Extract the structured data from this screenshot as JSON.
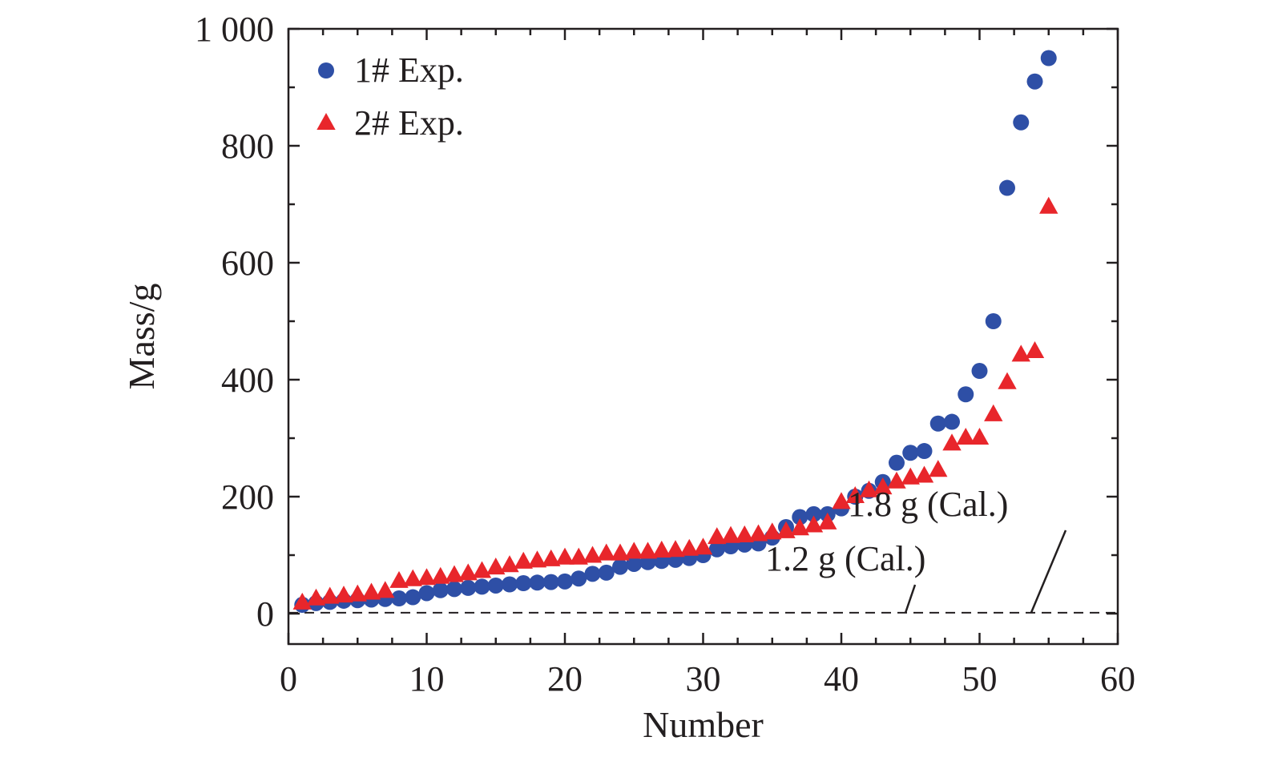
{
  "chart_data": {
    "type": "scatter",
    "xlabel": "Number",
    "ylabel": "Mass/g",
    "xlim": [
      0,
      60
    ],
    "ylim": [
      -50,
      1000
    ],
    "x_ticks": [
      0,
      10,
      20,
      30,
      40,
      50,
      60
    ],
    "x_tick_labels": [
      "0",
      "10",
      "20",
      "30",
      "40",
      "50",
      "60"
    ],
    "y_ticks": [
      0,
      200,
      400,
      600,
      800,
      1000
    ],
    "y_tick_labels": [
      "0",
      "200",
      "400",
      "600",
      "800",
      "1 000"
    ],
    "grid": false,
    "legend_position": "top-left",
    "series": [
      {
        "name": "1# Exp.",
        "marker": "circle",
        "color": "#2e4fa6",
        "x": [
          1,
          2,
          3,
          4,
          5,
          6,
          7,
          8,
          9,
          10,
          11,
          12,
          13,
          14,
          15,
          16,
          17,
          18,
          19,
          20,
          21,
          22,
          23,
          24,
          25,
          26,
          27,
          28,
          29,
          30,
          31,
          32,
          33,
          34,
          35,
          36,
          37,
          38,
          39,
          40,
          41,
          42,
          43,
          44,
          45,
          46,
          47,
          48,
          49,
          50,
          51,
          52,
          53,
          54,
          55
        ],
        "y": [
          15,
          18,
          20,
          22,
          23,
          24,
          25,
          26,
          28,
          35,
          40,
          42,
          44,
          46,
          48,
          50,
          52,
          53,
          54,
          55,
          60,
          68,
          70,
          80,
          85,
          88,
          90,
          92,
          95,
          100,
          110,
          115,
          118,
          120,
          130,
          148,
          165,
          170,
          170,
          180,
          200,
          210,
          225,
          258,
          275,
          278,
          325,
          328,
          375,
          415,
          500,
          728,
          840,
          910,
          950
        ]
      },
      {
        "name": "2# Exp.",
        "marker": "triangle",
        "color": "#e8262b",
        "x": [
          1,
          2,
          3,
          4,
          5,
          6,
          7,
          8,
          9,
          10,
          11,
          12,
          13,
          14,
          15,
          16,
          17,
          18,
          19,
          20,
          21,
          22,
          23,
          24,
          25,
          26,
          27,
          28,
          29,
          30,
          31,
          32,
          33,
          34,
          35,
          36,
          37,
          38,
          39,
          40,
          41,
          42,
          43,
          44,
          45,
          46,
          47,
          48,
          49,
          50,
          51,
          52,
          53,
          54,
          55
        ],
        "y": [
          18,
          25,
          28,
          30,
          32,
          35,
          38,
          55,
          58,
          60,
          62,
          65,
          68,
          72,
          78,
          82,
          88,
          90,
          92,
          95,
          95,
          98,
          102,
          102,
          105,
          105,
          107,
          108,
          110,
          112,
          130,
          132,
          133,
          135,
          138,
          140,
          145,
          150,
          155,
          190,
          200,
          210,
          215,
          225,
          232,
          235,
          245,
          290,
          300,
          300,
          340,
          395,
          442,
          448,
          695
        ]
      }
    ],
    "reference_lines": [
      {
        "y": 1.2,
        "style": "dashed",
        "label": "1.2 g (Cal.)"
      },
      {
        "y": 1.8,
        "style": "dashed",
        "label": "1.8 g (Cal.)"
      }
    ]
  }
}
